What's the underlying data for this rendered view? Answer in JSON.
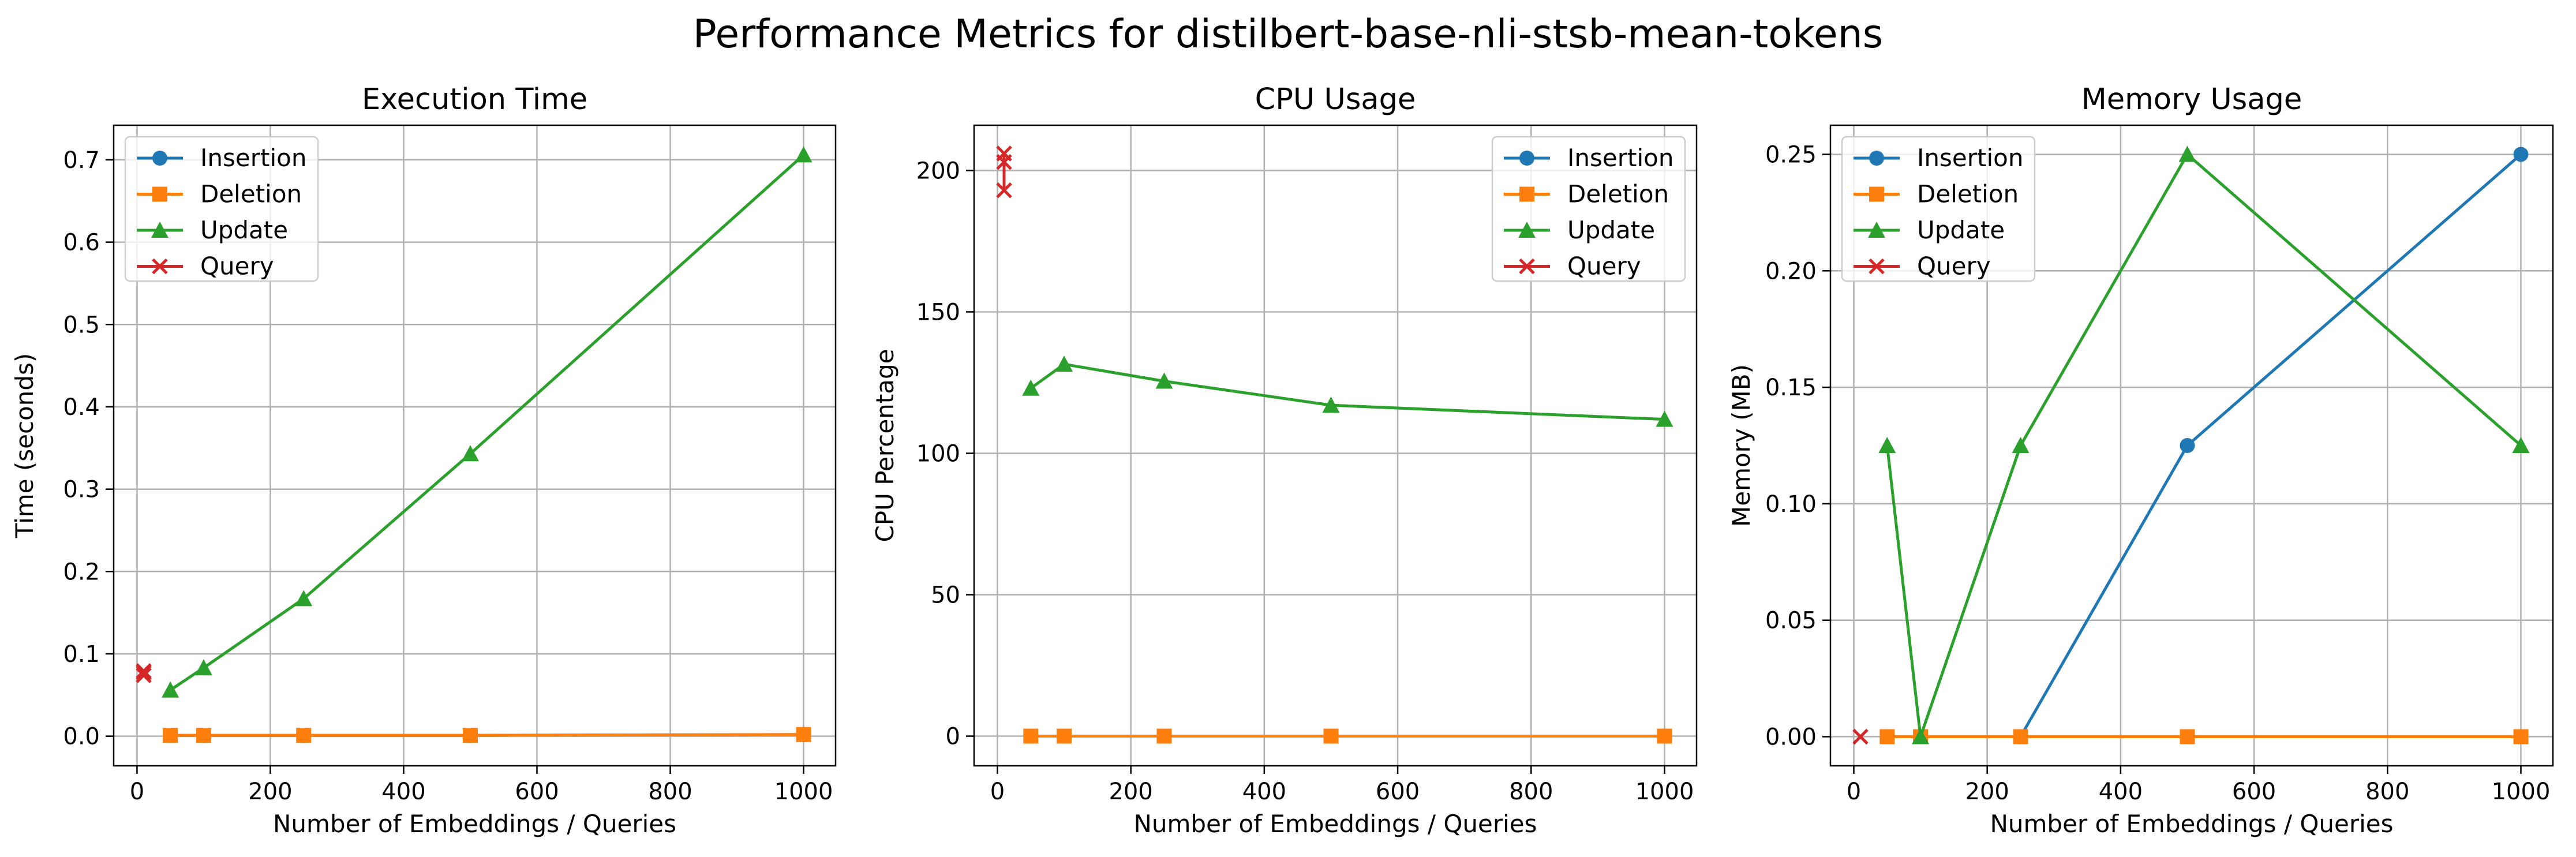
{
  "figure": {
    "suptitle": "Performance Metrics for distilbert-base-nli-stsb-mean-tokens"
  },
  "chart_data": [
    {
      "type": "line",
      "title": "Execution Time",
      "xlabel": "Number of Embeddings / Queries",
      "ylabel": "Time (seconds)",
      "xlim": [
        -35,
        1048
      ],
      "ylim": [
        -0.036,
        0.742
      ],
      "xticks": [
        0,
        200,
        400,
        600,
        800,
        1000
      ],
      "yticks": [
        0.0,
        0.1,
        0.2,
        0.3,
        0.4,
        0.5,
        0.6,
        0.7
      ],
      "ytick_labels": [
        "0.0",
        "0.1",
        "0.2",
        "0.3",
        "0.4",
        "0.5",
        "0.6",
        "0.7"
      ],
      "grid": true,
      "legend_position": "upper left",
      "series": [
        {
          "name": "Insertion",
          "color": "#1f77b4",
          "marker": "circle",
          "x": [
            50,
            100,
            250,
            500,
            1000
          ],
          "y": [
            0.001,
            0.001,
            0.001,
            0.001,
            0.002
          ]
        },
        {
          "name": "Deletion",
          "color": "#ff7f0e",
          "marker": "square",
          "x": [
            50,
            100,
            250,
            500,
            1000
          ],
          "y": [
            0.001,
            0.001,
            0.001,
            0.001,
            0.002
          ]
        },
        {
          "name": "Update",
          "color": "#2ca02c",
          "marker": "triangle",
          "x": [
            50,
            100,
            250,
            500,
            1000
          ],
          "y": [
            0.056,
            0.083,
            0.167,
            0.343,
            0.706
          ]
        },
        {
          "name": "Query",
          "color": "#d62728",
          "marker": "x",
          "x": [
            10,
            10,
            10
          ],
          "y": [
            0.074,
            0.077,
            0.079
          ]
        }
      ]
    },
    {
      "type": "line",
      "title": "CPU Usage",
      "xlabel": "Number of Embeddings / Queries",
      "ylabel": "CPU Percentage",
      "xlim": [
        -35,
        1048
      ],
      "ylim": [
        -10.5,
        216
      ],
      "xticks": [
        0,
        200,
        400,
        600,
        800,
        1000
      ],
      "yticks": [
        0,
        50,
        100,
        150,
        200
      ],
      "ytick_labels": [
        "0",
        "50",
        "100",
        "150",
        "200"
      ],
      "grid": true,
      "legend_position": "upper right",
      "series": [
        {
          "name": "Insertion",
          "color": "#1f77b4",
          "marker": "circle",
          "x": [
            50,
            100,
            250,
            500,
            1000
          ],
          "y": [
            0,
            0,
            0,
            0,
            0
          ]
        },
        {
          "name": "Deletion",
          "color": "#ff7f0e",
          "marker": "square",
          "x": [
            50,
            100,
            250,
            500,
            1000
          ],
          "y": [
            0,
            0,
            0,
            0,
            0
          ]
        },
        {
          "name": "Update",
          "color": "#2ca02c",
          "marker": "triangle",
          "x": [
            50,
            100,
            250,
            500,
            1000
          ],
          "y": [
            123,
            131.5,
            125.5,
            117,
            112
          ]
        },
        {
          "name": "Query",
          "color": "#d62728",
          "marker": "x",
          "x": [
            10,
            10,
            10
          ],
          "y": [
            193,
            203,
            206
          ]
        }
      ]
    },
    {
      "type": "line",
      "title": "Memory Usage",
      "xlabel": "Number of Embeddings / Queries",
      "ylabel": "Memory (MB)",
      "xlim": [
        -35,
        1048
      ],
      "ylim": [
        -0.0125,
        0.2625
      ],
      "xticks": [
        0,
        200,
        400,
        600,
        800,
        1000
      ],
      "yticks": [
        0.0,
        0.05,
        0.1,
        0.15,
        0.2,
        0.25
      ],
      "ytick_labels": [
        "0.00",
        "0.05",
        "0.10",
        "0.15",
        "0.20",
        "0.25"
      ],
      "grid": true,
      "legend_position": "upper left",
      "series": [
        {
          "name": "Insertion",
          "color": "#1f77b4",
          "marker": "circle",
          "x": [
            50,
            100,
            250,
            500,
            1000
          ],
          "y": [
            0,
            0,
            0,
            0.125,
            0.25
          ]
        },
        {
          "name": "Deletion",
          "color": "#ff7f0e",
          "marker": "square",
          "x": [
            50,
            100,
            250,
            500,
            1000
          ],
          "y": [
            0,
            0,
            0,
            0,
            0
          ]
        },
        {
          "name": "Update",
          "color": "#2ca02c",
          "marker": "triangle",
          "x": [
            50,
            100,
            250,
            500,
            1000
          ],
          "y": [
            0.125,
            0,
            0.125,
            0.25,
            0.125
          ]
        },
        {
          "name": "Query",
          "color": "#d62728",
          "marker": "x",
          "x": [
            10
          ],
          "y": [
            0
          ]
        }
      ]
    }
  ]
}
